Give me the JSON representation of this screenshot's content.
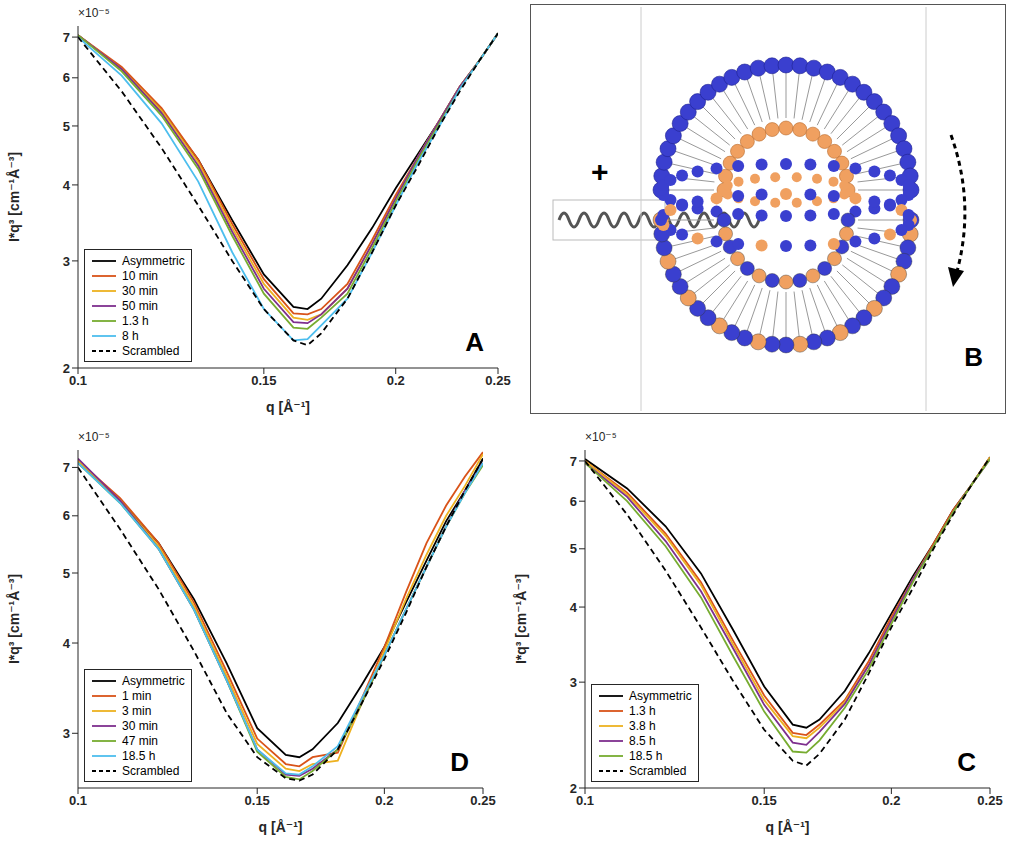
{
  "chart_data": [
    {
      "type": "line",
      "annotations": {
        "panel": "A",
        "multiplier": "×10⁻⁵"
      },
      "xlabel": "q [Å⁻¹]",
      "ylabel": "I*q³ [cm⁻¹Å⁻³]",
      "log": true,
      "grid": false,
      "legend": "lower left",
      "xlim": [
        0.1,
        0.25
      ],
      "ylim": [
        2,
        7.3
      ],
      "xticks": [
        0.1,
        0.15,
        0.2,
        0.25
      ],
      "yticks": [
        2,
        3,
        4,
        5,
        6,
        7
      ],
      "x": [
        0.1,
        0.11,
        0.12,
        0.13,
        0.14,
        0.15,
        0.16,
        0.165,
        0.17,
        0.18,
        0.19,
        0.2,
        0.21,
        0.22,
        0.23,
        0.24,
        0.25
      ],
      "series": [
        {
          "name": "Asymmetric",
          "color": "#000000",
          "line_style": "solid",
          "values": [
            7.05,
            6.2,
            5.3,
            4.4,
            3.5,
            2.85,
            2.52,
            2.5,
            2.6,
            2.95,
            3.4,
            3.95,
            4.5,
            5.1,
            5.8,
            6.4,
            7.1
          ]
        },
        {
          "name": "10 min",
          "color": "#d95319",
          "line_style": "solid",
          "values": [
            7.05,
            6.25,
            5.35,
            4.4,
            3.45,
            2.8,
            2.46,
            2.45,
            2.5,
            2.75,
            3.25,
            3.85,
            4.45,
            5.1,
            5.8,
            6.4,
            7.1
          ]
        },
        {
          "name": "30 min",
          "color": "#edb120",
          "line_style": "solid",
          "values": [
            7.05,
            6.2,
            5.3,
            4.35,
            3.4,
            2.75,
            2.42,
            2.4,
            2.45,
            2.7,
            3.2,
            3.8,
            4.45,
            5.1,
            5.8,
            6.4,
            7.1
          ]
        },
        {
          "name": "50 min",
          "color": "#7e2f8e",
          "line_style": "solid",
          "values": [
            7.05,
            6.2,
            5.25,
            4.3,
            3.35,
            2.7,
            2.38,
            2.37,
            2.45,
            2.7,
            3.2,
            3.8,
            4.45,
            5.1,
            5.8,
            6.4,
            7.1
          ]
        },
        {
          "name": "1.3 h",
          "color": "#77ac30",
          "line_style": "solid",
          "values": [
            7.05,
            6.15,
            5.2,
            4.25,
            3.3,
            2.65,
            2.33,
            2.32,
            2.42,
            2.65,
            3.15,
            3.75,
            4.4,
            5.05,
            5.75,
            6.4,
            7.1
          ]
        },
        {
          "name": "8 h",
          "color": "#4dbeee",
          "line_style": "solid",
          "values": [
            7.0,
            6.05,
            5.05,
            4.05,
            3.1,
            2.5,
            2.22,
            2.23,
            2.35,
            2.6,
            3.1,
            3.7,
            4.35,
            5.0,
            5.75,
            6.4,
            7.1
          ]
        },
        {
          "name": "Scrambled",
          "color": "#000000",
          "line_style": "dashed",
          "values": [
            7.0,
            5.7,
            4.6,
            3.7,
            3.0,
            2.5,
            2.22,
            2.18,
            2.28,
            2.6,
            3.1,
            3.7,
            4.3,
            5.0,
            5.7,
            6.4,
            7.1
          ]
        }
      ]
    },
    {
      "type": "line",
      "annotations": {
        "panel": "D",
        "multiplier": "×10⁻⁵"
      },
      "xlabel": "q [Å⁻¹]",
      "ylabel": "I*q³ [cm⁻¹Å⁻³]",
      "log": true,
      "grid": false,
      "legend": "lower left",
      "xlim": [
        0.1,
        0.25
      ],
      "ylim": [
        2.52,
        7.4
      ],
      "xticks": [
        0.1,
        0.15,
        0.2,
        0.25
      ],
      "yticks": [
        3,
        4,
        5,
        6,
        7
      ],
      "x": [
        0.1,
        0.11,
        0.12,
        0.13,
        0.14,
        0.15,
        0.16,
        0.165,
        0.17,
        0.18,
        0.19,
        0.2,
        0.21,
        0.22,
        0.23,
        0.24,
        0.25
      ],
      "series": [
        {
          "name": "Asymmetric",
          "color": "#000000",
          "line_style": "solid",
          "values": [
            7.1,
            6.3,
            5.5,
            4.6,
            3.75,
            3.05,
            2.8,
            2.78,
            2.85,
            3.1,
            3.5,
            3.95,
            4.55,
            5.2,
            5.9,
            6.5,
            7.2
          ]
        },
        {
          "name": "1 min",
          "color": "#d95319",
          "line_style": "solid",
          "values": [
            7.15,
            6.35,
            5.5,
            4.55,
            3.65,
            2.95,
            2.72,
            2.7,
            2.78,
            2.82,
            3.35,
            3.95,
            4.7,
            5.5,
            6.2,
            6.8,
            7.35
          ]
        },
        {
          "name": "3 min",
          "color": "#edb120",
          "line_style": "solid",
          "values": [
            7.15,
            6.3,
            5.45,
            4.5,
            3.6,
            2.9,
            2.68,
            2.66,
            2.72,
            2.75,
            3.3,
            3.9,
            4.6,
            5.3,
            6.0,
            6.6,
            7.3
          ]
        },
        {
          "name": "30 min",
          "color": "#7e2f8e",
          "line_style": "solid",
          "values": [
            7.2,
            6.3,
            5.4,
            4.45,
            3.55,
            2.85,
            2.63,
            2.62,
            2.68,
            2.85,
            3.3,
            3.85,
            4.45,
            5.1,
            5.8,
            6.5,
            7.1
          ]
        },
        {
          "name": "47 min",
          "color": "#77ac30",
          "line_style": "solid",
          "values": [
            7.1,
            6.25,
            5.4,
            4.45,
            3.55,
            2.83,
            2.61,
            2.59,
            2.66,
            2.85,
            3.3,
            3.85,
            4.45,
            5.1,
            5.8,
            6.45,
            7.05
          ]
        },
        {
          "name": "18.5 h",
          "color": "#4dbeee",
          "line_style": "solid",
          "values": [
            7.1,
            6.25,
            5.4,
            4.45,
            3.55,
            2.85,
            2.64,
            2.63,
            2.7,
            2.88,
            3.35,
            3.85,
            4.45,
            5.1,
            5.8,
            6.45,
            7.1
          ]
        },
        {
          "name": "Scrambled",
          "color": "#000000",
          "line_style": "dashed",
          "values": [
            7.0,
            5.75,
            4.75,
            3.9,
            3.2,
            2.78,
            2.6,
            2.58,
            2.63,
            2.85,
            3.3,
            3.8,
            4.4,
            5.1,
            5.8,
            6.5,
            7.2
          ]
        }
      ]
    },
    {
      "type": "line",
      "annotations": {
        "panel": "C",
        "multiplier": "×10⁻⁵"
      },
      "xlabel": "q [Å⁻¹]",
      "ylabel": "I*q³ [cm⁻¹Å⁻³]",
      "log": true,
      "grid": false,
      "legend": "lower left",
      "xlim": [
        0.1,
        0.25
      ],
      "ylim": [
        2,
        7.3
      ],
      "xticks": [
        0.1,
        0.15,
        0.2,
        0.25
      ],
      "yticks": [
        2,
        3,
        4,
        5,
        6,
        7
      ],
      "x": [
        0.1,
        0.11,
        0.12,
        0.13,
        0.14,
        0.15,
        0.16,
        0.165,
        0.17,
        0.18,
        0.19,
        0.2,
        0.21,
        0.22,
        0.23,
        0.24,
        0.25
      ],
      "series": [
        {
          "name": "Asymmetric",
          "color": "#000000",
          "line_style": "solid",
          "values": [
            7.05,
            6.3,
            5.45,
            4.55,
            3.65,
            2.95,
            2.55,
            2.52,
            2.6,
            2.9,
            3.35,
            3.9,
            4.5,
            5.1,
            5.8,
            6.4,
            7.1
          ]
        },
        {
          "name": "1.3 h",
          "color": "#d95319",
          "line_style": "solid",
          "values": [
            7.0,
            6.2,
            5.3,
            4.4,
            3.5,
            2.85,
            2.47,
            2.45,
            2.55,
            2.8,
            3.25,
            3.85,
            4.45,
            5.1,
            5.8,
            6.4,
            7.1
          ]
        },
        {
          "name": "3.8 h",
          "color": "#edb120",
          "line_style": "solid",
          "values": [
            7.0,
            6.15,
            5.25,
            4.35,
            3.45,
            2.8,
            2.44,
            2.42,
            2.52,
            2.78,
            3.2,
            3.8,
            4.45,
            5.05,
            5.75,
            6.4,
            7.1
          ]
        },
        {
          "name": "8.5 h",
          "color": "#7e2f8e",
          "line_style": "solid",
          "values": [
            6.95,
            6.1,
            5.15,
            4.25,
            3.4,
            2.75,
            2.38,
            2.36,
            2.48,
            2.76,
            3.2,
            3.8,
            4.45,
            5.05,
            5.75,
            6.4,
            7.05
          ]
        },
        {
          "name": "18.5 h",
          "color": "#77ac30",
          "line_style": "solid",
          "values": [
            6.95,
            6.0,
            5.05,
            4.15,
            3.3,
            2.68,
            2.3,
            2.29,
            2.4,
            2.72,
            3.15,
            3.75,
            4.4,
            5.05,
            5.75,
            6.4,
            7.05
          ]
        },
        {
          "name": "Scrambled",
          "color": "#000000",
          "line_style": "dashed",
          "values": [
            7.0,
            5.7,
            4.6,
            3.7,
            3.0,
            2.5,
            2.22,
            2.18,
            2.28,
            2.6,
            3.1,
            3.7,
            4.3,
            5.0,
            5.7,
            6.4,
            7.1
          ]
        }
      ]
    }
  ],
  "diagram": {
    "panel": "B",
    "symbol": "+"
  }
}
